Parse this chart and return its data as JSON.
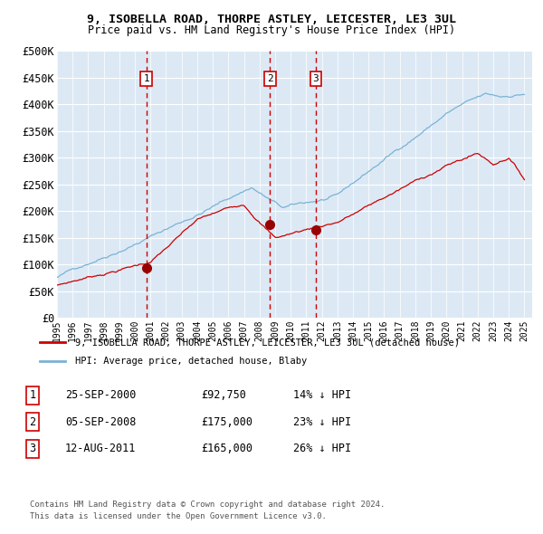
{
  "title": "9, ISOBELLA ROAD, THORPE ASTLEY, LEICESTER, LE3 3UL",
  "subtitle": "Price paid vs. HM Land Registry's House Price Index (HPI)",
  "legend_line1": "9, ISOBELLA ROAD, THORPE ASTLEY, LEICESTER, LE3 3UL (detached house)",
  "legend_line2": "HPI: Average price, detached house, Blaby",
  "footnote1": "Contains HM Land Registry data © Crown copyright and database right 2024.",
  "footnote2": "This data is licensed under the Open Government Licence v3.0.",
  "transactions": [
    {
      "num": 1,
      "date": "25-SEP-2000",
      "price": "£92,750",
      "pct": "14% ↓ HPI"
    },
    {
      "num": 2,
      "date": "05-SEP-2008",
      "price": "£175,000",
      "pct": "23% ↓ HPI"
    },
    {
      "num": 3,
      "date": "12-AUG-2011",
      "price": "£165,000",
      "pct": "26% ↓ HPI"
    }
  ],
  "transaction_dates_decimal": [
    2000.73,
    2008.68,
    2011.62
  ],
  "transaction_prices": [
    92750,
    175000,
    165000
  ],
  "hpi_color": "#7ab3d4",
  "price_color": "#cc0000",
  "bg_color": "#dce9f5",
  "grid_color": "#ffffff",
  "vline_color": "#cc0000",
  "marker_color": "#990000",
  "ylim": [
    0,
    500000
  ],
  "yticks": [
    0,
    50000,
    100000,
    150000,
    200000,
    250000,
    300000,
    350000,
    400000,
    450000,
    500000
  ],
  "xstart": 1995.0,
  "xend": 2025.5
}
